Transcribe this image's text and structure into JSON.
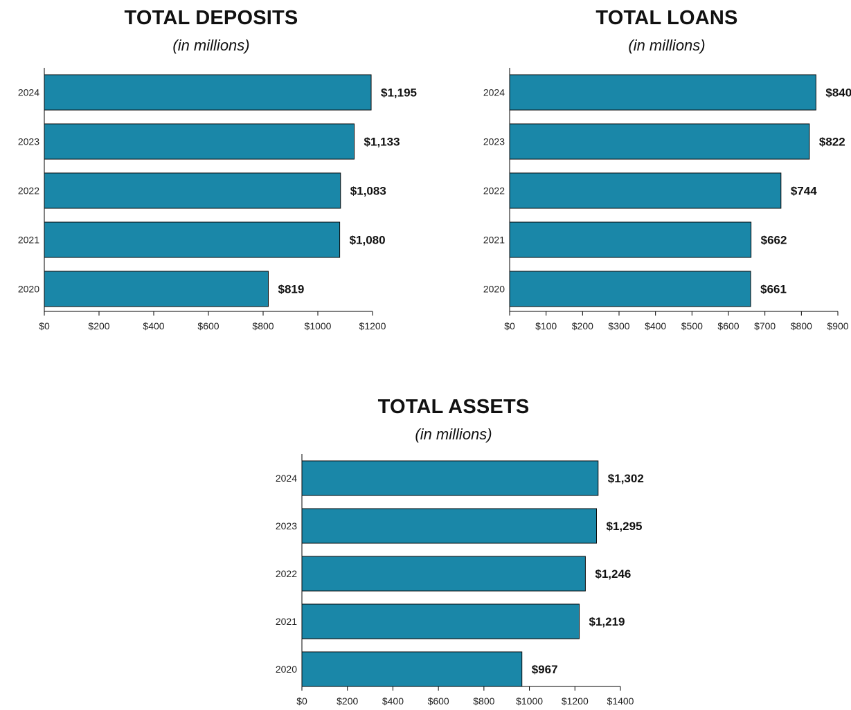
{
  "chart_data": [
    {
      "type": "bar",
      "orientation": "horizontal",
      "title": "TOTAL DEPOSITS",
      "subtitle": "(in millions)",
      "categories": [
        "2024",
        "2023",
        "2022",
        "2021",
        "2020"
      ],
      "values": [
        1195,
        1133,
        1083,
        1080,
        819
      ],
      "value_labels": [
        "$1,195",
        "$1,133",
        "$1,083",
        "$1,080",
        "$819"
      ],
      "xlim": [
        0,
        1200
      ],
      "ticks": [
        0,
        200,
        400,
        600,
        800,
        1000,
        1200
      ],
      "tick_labels": [
        "$0",
        "$200",
        "$400",
        "$600",
        "$800",
        "$1000",
        "$1200"
      ],
      "bar_color": "#1a87a8",
      "grid": false,
      "legend": "none"
    },
    {
      "type": "bar",
      "orientation": "horizontal",
      "title": "TOTAL LOANS",
      "subtitle": "(in millions)",
      "categories": [
        "2024",
        "2023",
        "2022",
        "2021",
        "2020"
      ],
      "values": [
        840,
        822,
        744,
        662,
        661
      ],
      "value_labels": [
        "$840",
        "$822",
        "$744",
        "$662",
        "$661"
      ],
      "xlim": [
        0,
        900
      ],
      "ticks": [
        0,
        100,
        200,
        300,
        400,
        500,
        600,
        700,
        800,
        900
      ],
      "tick_labels": [
        "$0",
        "$100",
        "$200",
        "$300",
        "$400",
        "$500",
        "$600",
        "$700",
        "$800",
        "$900"
      ],
      "bar_color": "#1a87a8",
      "grid": false,
      "legend": "none"
    },
    {
      "type": "bar",
      "orientation": "horizontal",
      "title": "TOTAL ASSETS",
      "subtitle": "(in millions)",
      "categories": [
        "2024",
        "2023",
        "2022",
        "2021",
        "2020"
      ],
      "values": [
        1302,
        1295,
        1246,
        1219,
        967
      ],
      "value_labels": [
        "$1,302",
        "$1,295",
        "$1,246",
        "$1,219",
        "$967"
      ],
      "xlim": [
        0,
        1400
      ],
      "ticks": [
        0,
        200,
        400,
        600,
        800,
        1000,
        1200,
        1400
      ],
      "tick_labels": [
        "$0",
        "$200",
        "$400",
        "$600",
        "$800",
        "$1000",
        "$1200",
        "$1400"
      ],
      "bar_color": "#1a87a8",
      "grid": false,
      "legend": "none"
    }
  ]
}
